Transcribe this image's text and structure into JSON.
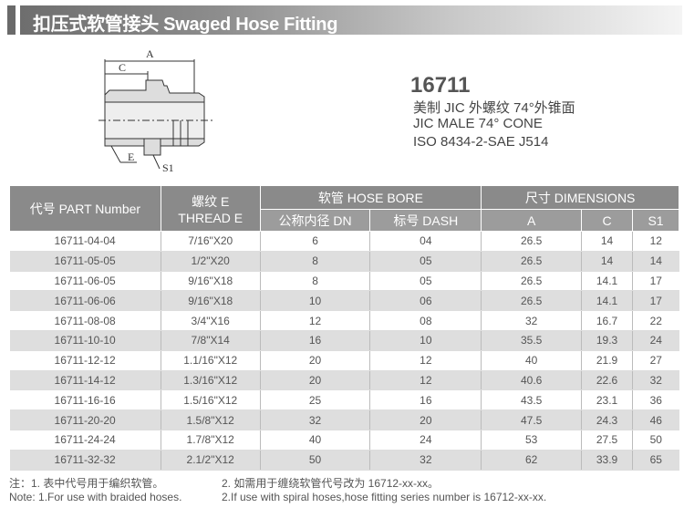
{
  "banner": {
    "title": "扣压式软管接头  Swaged Hose Fitting"
  },
  "drawing": {
    "labels": {
      "a": "A",
      "c": "C",
      "e": "E",
      "s1": "S1"
    }
  },
  "product": {
    "model": "16711",
    "desc_cn": "美制 JIC 外螺纹 74°外锥面",
    "desc_en": "JIC MALE 74° CONE",
    "standard": "ISO 8434-2-SAE J514"
  },
  "table": {
    "headers": {
      "part": "代号 PART Number",
      "thread_cn": "螺纹 E",
      "thread_en": "THREAD E",
      "hose_bore": "软管 HOSE BORE",
      "dimensions": "尺寸 DIMENSIONS",
      "dn": "公称内径 DN",
      "dash": "标号 DASH",
      "a": "A",
      "c": "C",
      "s1": "S1"
    },
    "rows": [
      [
        "16711-04-04",
        "7/16\"X20",
        "6",
        "04",
        "26.5",
        "14",
        "12"
      ],
      [
        "16711-05-05",
        "1/2\"X20",
        "8",
        "05",
        "26.5",
        "14",
        "14"
      ],
      [
        "16711-06-05",
        "9/16\"X18",
        "8",
        "05",
        "26.5",
        "14.1",
        "17"
      ],
      [
        "16711-06-06",
        "9/16\"X18",
        "10",
        "06",
        "26.5",
        "14.1",
        "17"
      ],
      [
        "16711-08-08",
        "3/4\"X16",
        "12",
        "08",
        "32",
        "16.7",
        "22"
      ],
      [
        "16711-10-10",
        "7/8\"X14",
        "16",
        "10",
        "35.5",
        "19.3",
        "24"
      ],
      [
        "16711-12-12",
        "1.1/16\"X12",
        "20",
        "12",
        "40",
        "21.9",
        "27"
      ],
      [
        "16711-14-12",
        "1.3/16\"X12",
        "20",
        "12",
        "40.6",
        "22.6",
        "32"
      ],
      [
        "16711-16-16",
        "1.5/16\"X12",
        "25",
        "16",
        "43.5",
        "23.1",
        "36"
      ],
      [
        "16711-20-20",
        "1.5/8\"X12",
        "32",
        "20",
        "47.5",
        "24.3",
        "46"
      ],
      [
        "16711-24-24",
        "1.7/8\"X12",
        "40",
        "24",
        "53",
        "27.5",
        "50"
      ],
      [
        "16711-32-32",
        "2.1/2\"X12",
        "50",
        "32",
        "62",
        "33.9",
        "65"
      ]
    ]
  },
  "notes": {
    "cn1": "注：1. 表中代号用于编织软管。",
    "cn2": "2. 如需用于缠绕软管代号改为 16712-xx-xx。",
    "en1": "Note: 1.For use with braided hoses.",
    "en2": "2.If use with spiral hoses,hose fitting series number is 16712-xx-xx."
  }
}
